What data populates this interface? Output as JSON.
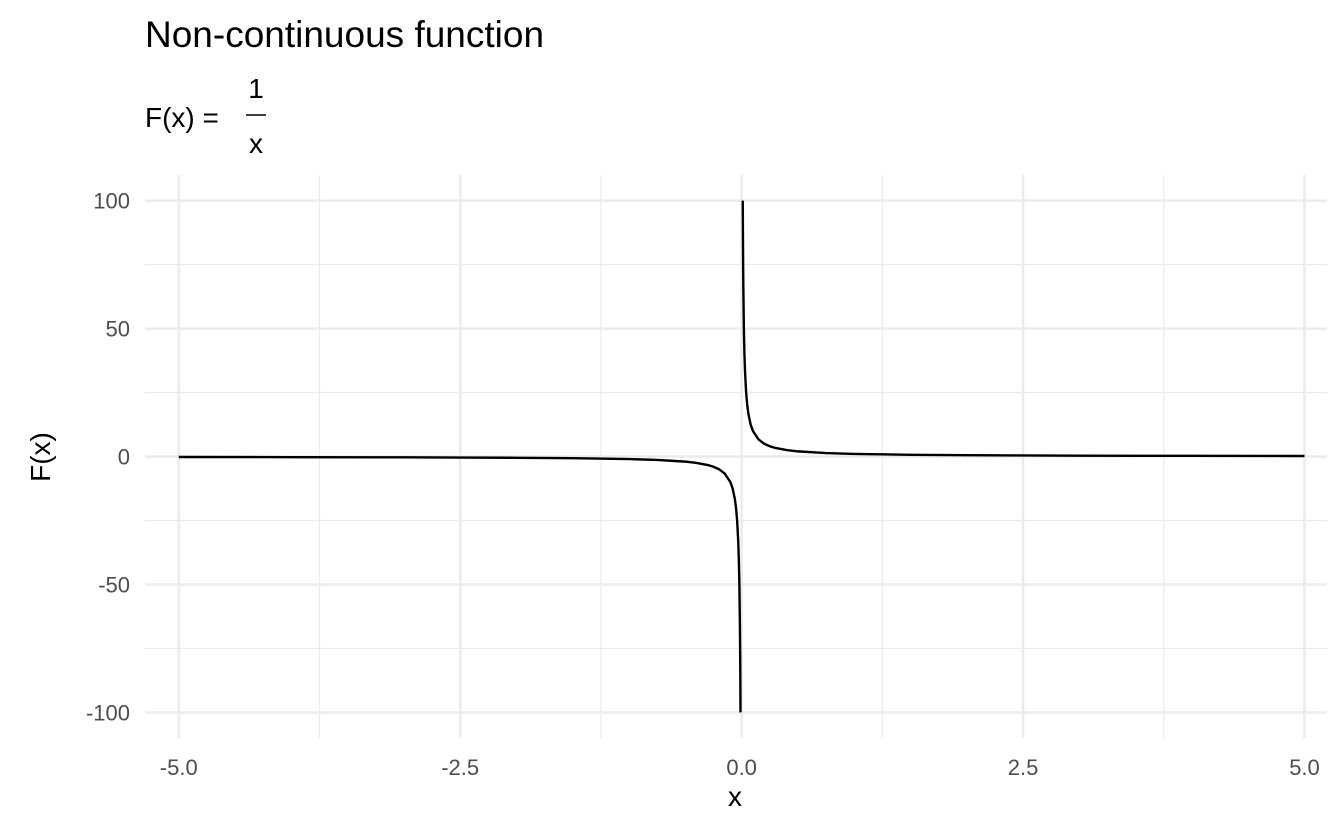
{
  "chart_data": {
    "type": "line",
    "title": "Non-continuous function",
    "subtitle": {
      "lhs": "F(x) =",
      "numerator": "1",
      "denominator": "x"
    },
    "xlabel": "x",
    "ylabel": "F(x)",
    "xlim": [
      -5.3,
      5.2
    ],
    "ylim": [
      -110,
      110
    ],
    "x_ticks": [
      -5.0,
      -2.5,
      0.0,
      2.5,
      5.0
    ],
    "x_tick_labels": [
      "-5.0",
      "-2.5",
      "0.0",
      "2.5",
      "5.0"
    ],
    "y_ticks": [
      -100,
      -50,
      0,
      50,
      100
    ],
    "y_tick_labels": [
      "-100",
      "-50",
      "0",
      "50",
      "100"
    ],
    "grid": true,
    "function": "1/x",
    "series": [
      {
        "x": [
          -5,
          -4,
          -3,
          -2.5,
          -2,
          -1.5,
          -1,
          -0.75,
          -0.5,
          -0.4,
          -0.3,
          -0.25,
          -0.2,
          -0.15,
          -0.1,
          -0.08,
          -0.06,
          -0.05,
          -0.04,
          -0.03,
          -0.025,
          -0.02,
          -0.015,
          -0.0125,
          -0.01
        ],
        "y": [
          -0.2,
          -0.25,
          -0.333,
          -0.4,
          -0.5,
          -0.667,
          -1,
          -1.333,
          -2,
          -2.5,
          -3.333,
          -4,
          -5,
          -6.667,
          -10,
          -12.5,
          -16.667,
          -20,
          -25,
          -33.333,
          -40,
          -50,
          -66.667,
          -80,
          -100
        ]
      },
      {
        "x": [
          0.01,
          0.0125,
          0.015,
          0.02,
          0.025,
          0.03,
          0.04,
          0.05,
          0.06,
          0.08,
          0.1,
          0.15,
          0.2,
          0.25,
          0.3,
          0.4,
          0.5,
          0.75,
          1,
          1.5,
          2,
          2.5,
          3,
          4,
          5
        ],
        "y": [
          100,
          80,
          66.667,
          50,
          40,
          33.333,
          25,
          20,
          16.667,
          12.5,
          10,
          6.667,
          5,
          4,
          3.333,
          2.5,
          2,
          1.333,
          1,
          0.667,
          0.5,
          0.4,
          0.333,
          0.25,
          0.2
        ]
      }
    ]
  }
}
